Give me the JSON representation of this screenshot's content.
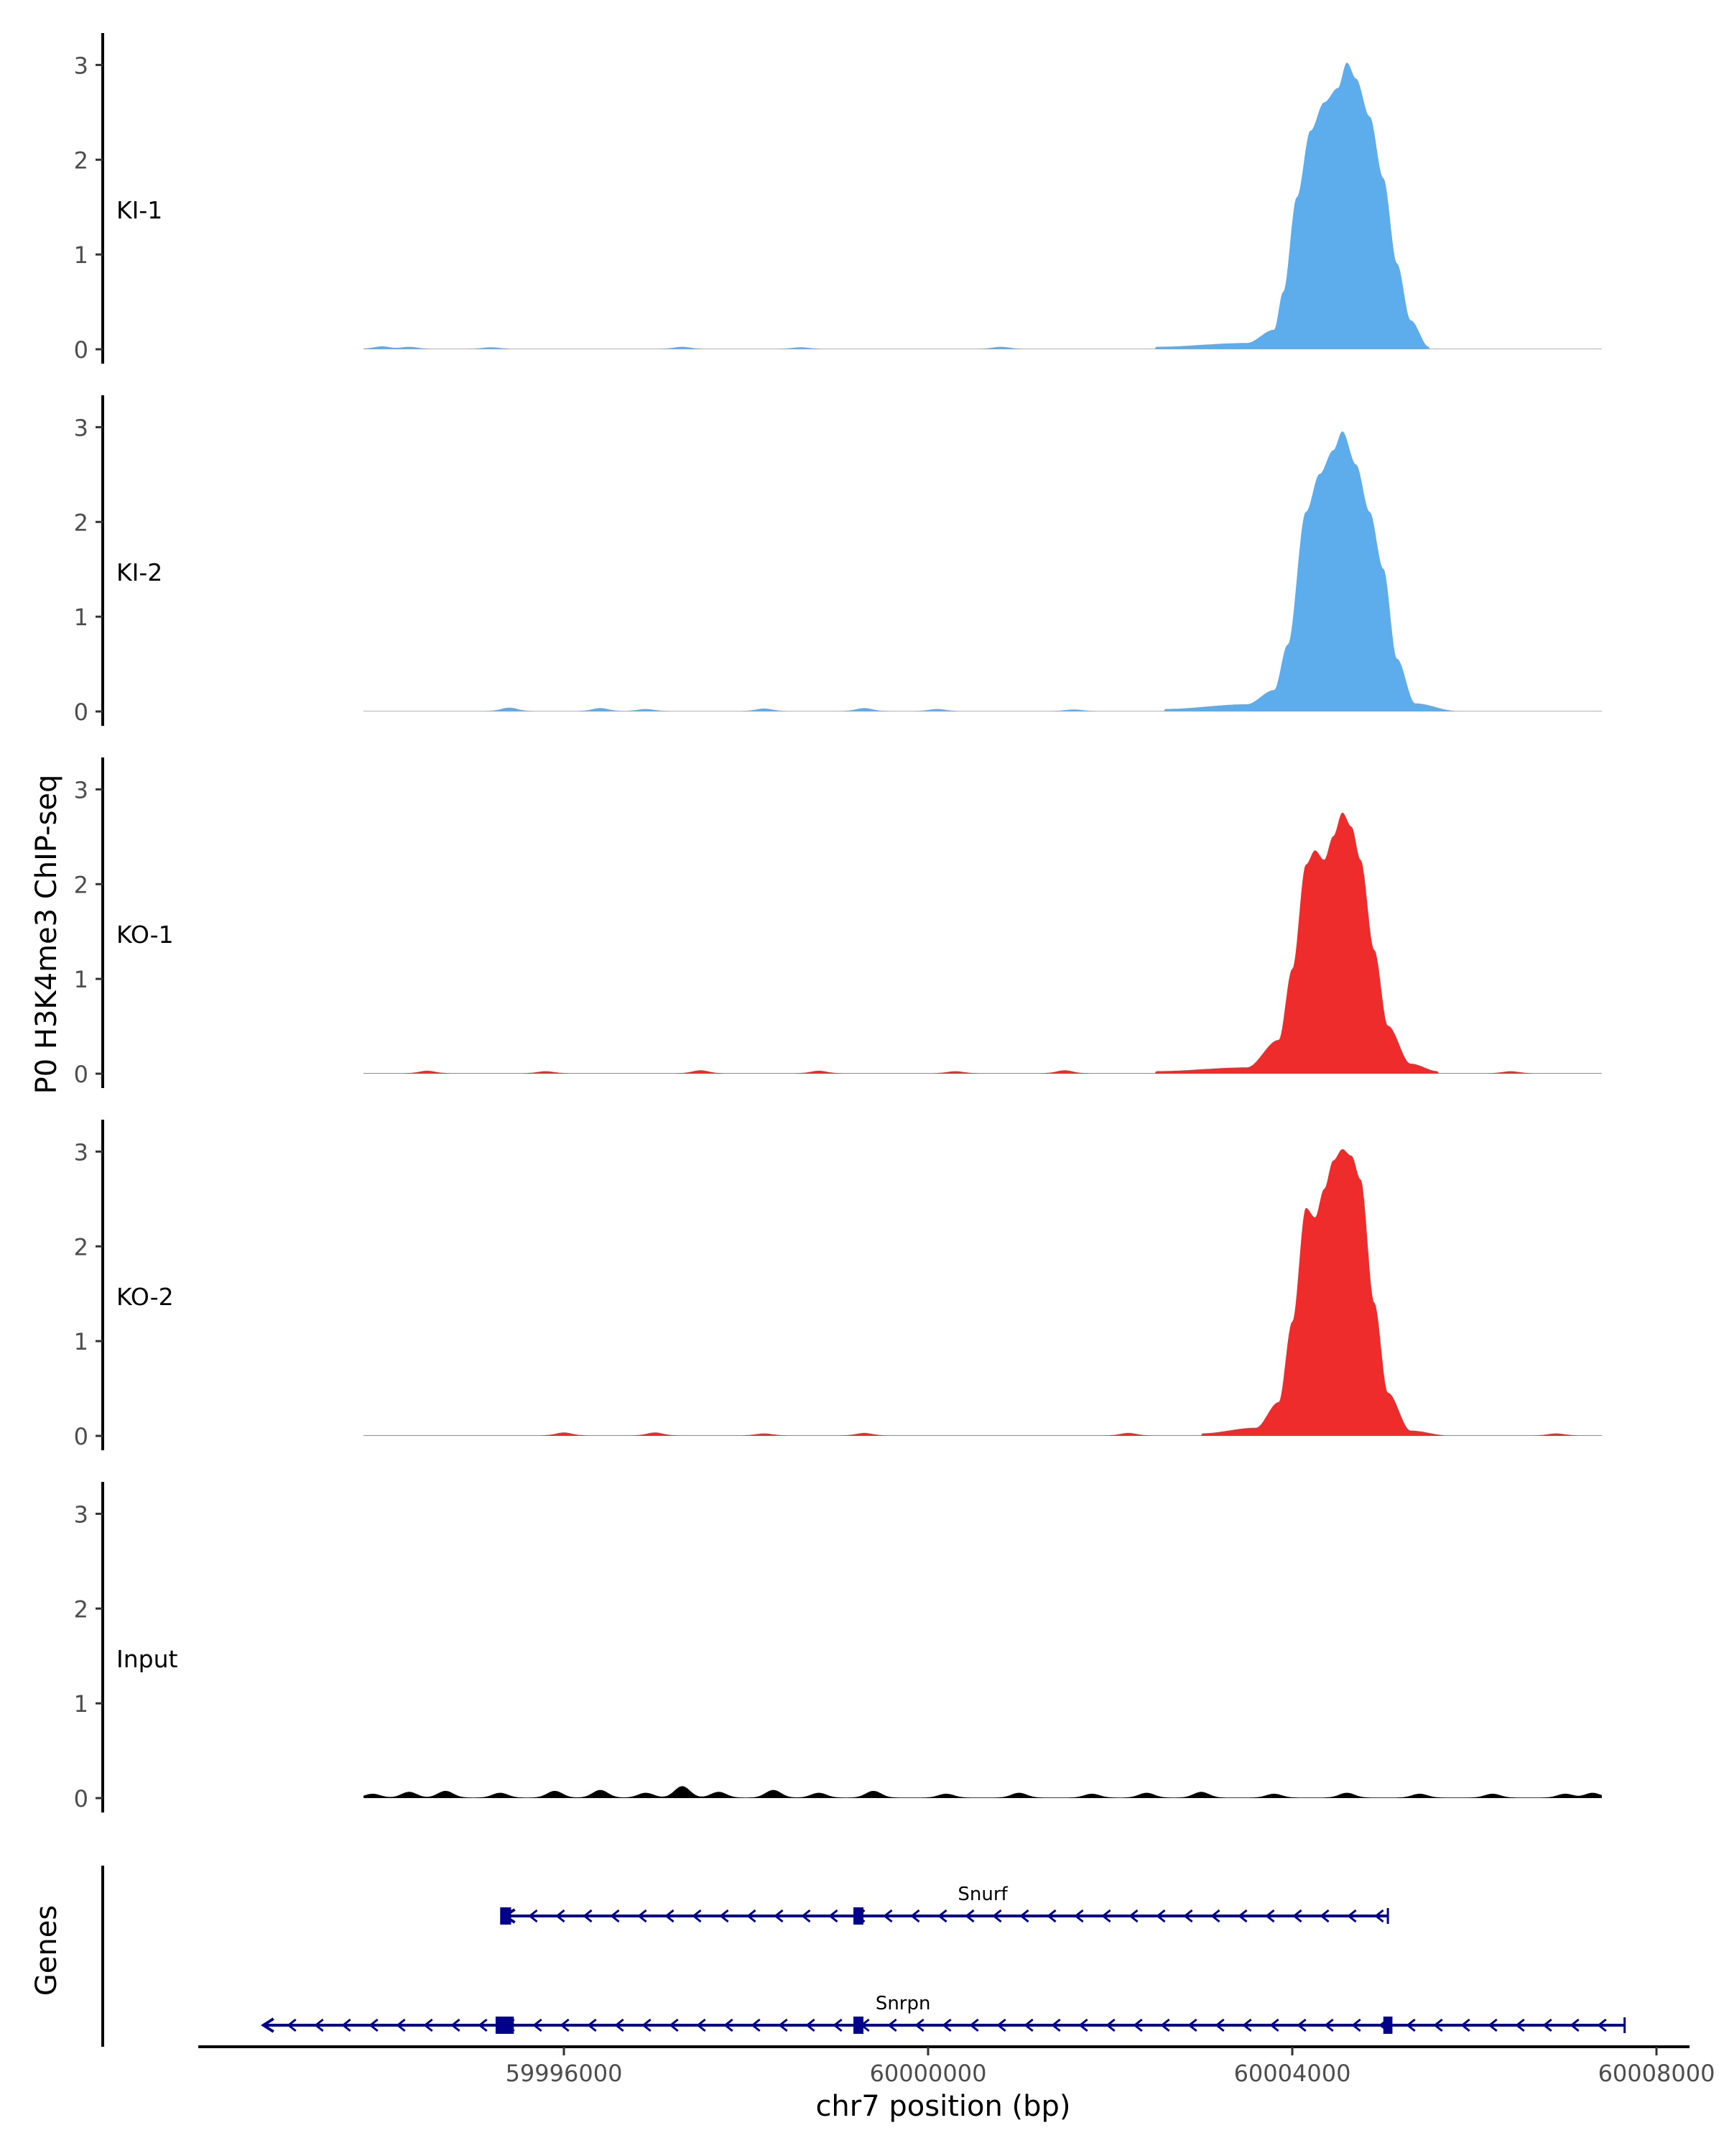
{
  "chart_data": {
    "type": "area",
    "ylabel": "P0 H3K4me3 ChIP-seq",
    "xlabel": "chr7 position (bp)",
    "genes_label": "Genes",
    "y_ticks": [
      "0",
      "1",
      "2",
      "3"
    ],
    "ylim": [
      0,
      3.2
    ],
    "xlim": [
      59992000,
      60008000
    ],
    "data_xrange": [
      59993800,
      60007400
    ],
    "x_ticks": [
      {
        "value": 59996000,
        "label": "59996000"
      },
      {
        "value": 60000000,
        "label": "60000000"
      },
      {
        "value": 60004000,
        "label": "60004000"
      },
      {
        "value": 60008000,
        "label": "60008000"
      }
    ],
    "colors": {
      "KI": "#5DADEC",
      "KO": "#EE2C2C",
      "Input": "#000000",
      "gene": "#00008B"
    },
    "tracks": [
      {
        "name": "KI-1",
        "color": "#5DADEC",
        "peak": [
          [
            60002500,
            0.02
          ],
          [
            60003500,
            0.06
          ],
          [
            60003800,
            0.2
          ],
          [
            60003900,
            0.6
          ],
          [
            60004050,
            1.6
          ],
          [
            60004200,
            2.3
          ],
          [
            60004350,
            2.6
          ],
          [
            60004500,
            2.75
          ],
          [
            60004600,
            3.02
          ],
          [
            60004700,
            2.85
          ],
          [
            60004850,
            2.45
          ],
          [
            60005000,
            1.8
          ],
          [
            60005150,
            0.9
          ],
          [
            60005300,
            0.3
          ],
          [
            60005500,
            0.02
          ]
        ],
        "bumps": [
          [
            59994000,
            0.025
          ],
          [
            59994300,
            0.02
          ],
          [
            59995200,
            0.015
          ],
          [
            59997300,
            0.02
          ],
          [
            59998600,
            0.015
          ],
          [
            60000800,
            0.02
          ]
        ]
      },
      {
        "name": "KI-2",
        "color": "#5DADEC",
        "peak": [
          [
            60002600,
            0.02
          ],
          [
            60003500,
            0.07
          ],
          [
            60003800,
            0.22
          ],
          [
            60003950,
            0.7
          ],
          [
            60004150,
            2.1
          ],
          [
            60004300,
            2.5
          ],
          [
            60004450,
            2.75
          ],
          [
            60004550,
            2.95
          ],
          [
            60004700,
            2.6
          ],
          [
            60004850,
            2.1
          ],
          [
            60005000,
            1.5
          ],
          [
            60005150,
            0.55
          ],
          [
            60005350,
            0.08
          ],
          [
            60005800,
            0.0
          ]
        ],
        "bumps": [
          [
            59995400,
            0.035
          ],
          [
            59996400,
            0.03
          ],
          [
            59996900,
            0.02
          ],
          [
            59998200,
            0.025
          ],
          [
            59999300,
            0.03
          ],
          [
            60000100,
            0.02
          ],
          [
            60001600,
            0.015
          ]
        ]
      },
      {
        "name": "KO-1",
        "color": "#EE2C2C",
        "peak": [
          [
            60002500,
            0.02
          ],
          [
            60003500,
            0.06
          ],
          [
            60003850,
            0.35
          ],
          [
            60004000,
            1.1
          ],
          [
            60004150,
            2.2
          ],
          [
            60004250,
            2.35
          ],
          [
            60004350,
            2.25
          ],
          [
            60004450,
            2.5
          ],
          [
            60004550,
            2.75
          ],
          [
            60004650,
            2.6
          ],
          [
            60004750,
            2.25
          ],
          [
            60004900,
            1.3
          ],
          [
            60005050,
            0.5
          ],
          [
            60005300,
            0.1
          ],
          [
            60005600,
            0.02
          ]
        ],
        "bumps": [
          [
            59994500,
            0.025
          ],
          [
            59995800,
            0.02
          ],
          [
            59997500,
            0.03
          ],
          [
            59998800,
            0.025
          ],
          [
            60000300,
            0.02
          ],
          [
            60001500,
            0.03
          ],
          [
            60006400,
            0.02
          ]
        ]
      },
      {
        "name": "KO-2",
        "color": "#EE2C2C",
        "peak": [
          [
            60003000,
            0.02
          ],
          [
            60003600,
            0.08
          ],
          [
            60003850,
            0.35
          ],
          [
            60004000,
            1.2
          ],
          [
            60004150,
            2.4
          ],
          [
            60004250,
            2.3
          ],
          [
            60004350,
            2.6
          ],
          [
            60004450,
            2.9
          ],
          [
            60004550,
            3.02
          ],
          [
            60004650,
            2.95
          ],
          [
            60004750,
            2.7
          ],
          [
            60004900,
            1.4
          ],
          [
            60005050,
            0.45
          ],
          [
            60005300,
            0.05
          ],
          [
            60005700,
            0.0
          ]
        ],
        "bumps": [
          [
            59996000,
            0.03
          ],
          [
            59997000,
            0.03
          ],
          [
            59998200,
            0.02
          ],
          [
            59999300,
            0.025
          ],
          [
            60002200,
            0.025
          ],
          [
            60006900,
            0.02
          ]
        ]
      },
      {
        "name": "Input",
        "color": "#000000",
        "peak": [],
        "bumps": [
          [
            59993900,
            0.04
          ],
          [
            59994300,
            0.06
          ],
          [
            59994700,
            0.07
          ],
          [
            59995300,
            0.05
          ],
          [
            59995900,
            0.07
          ],
          [
            59996400,
            0.08
          ],
          [
            59996900,
            0.05
          ],
          [
            59997300,
            0.12
          ],
          [
            59997700,
            0.06
          ],
          [
            59998300,
            0.08
          ],
          [
            59998800,
            0.05
          ],
          [
            59999400,
            0.07
          ],
          [
            60000200,
            0.04
          ],
          [
            60001000,
            0.05
          ],
          [
            60001800,
            0.04
          ],
          [
            60002400,
            0.05
          ],
          [
            60003000,
            0.06
          ],
          [
            60003800,
            0.04
          ],
          [
            60004600,
            0.05
          ],
          [
            60005400,
            0.04
          ],
          [
            60006200,
            0.04
          ],
          [
            60007000,
            0.04
          ],
          [
            60007300,
            0.05
          ]
        ]
      }
    ],
    "genes": [
      {
        "name": "Snurf",
        "start": 59995350,
        "end": 60005050,
        "strand": "-",
        "exons": [
          [
            59995300,
            59995420
          ],
          [
            59999180,
            59999290
          ]
        ]
      },
      {
        "name": "Snrpn",
        "start": 59992700,
        "end": 60007650,
        "strand": "-",
        "exons": [
          [
            59995250,
            59995450
          ],
          [
            59999180,
            59999290
          ],
          [
            60005000,
            60005100
          ]
        ]
      }
    ]
  }
}
